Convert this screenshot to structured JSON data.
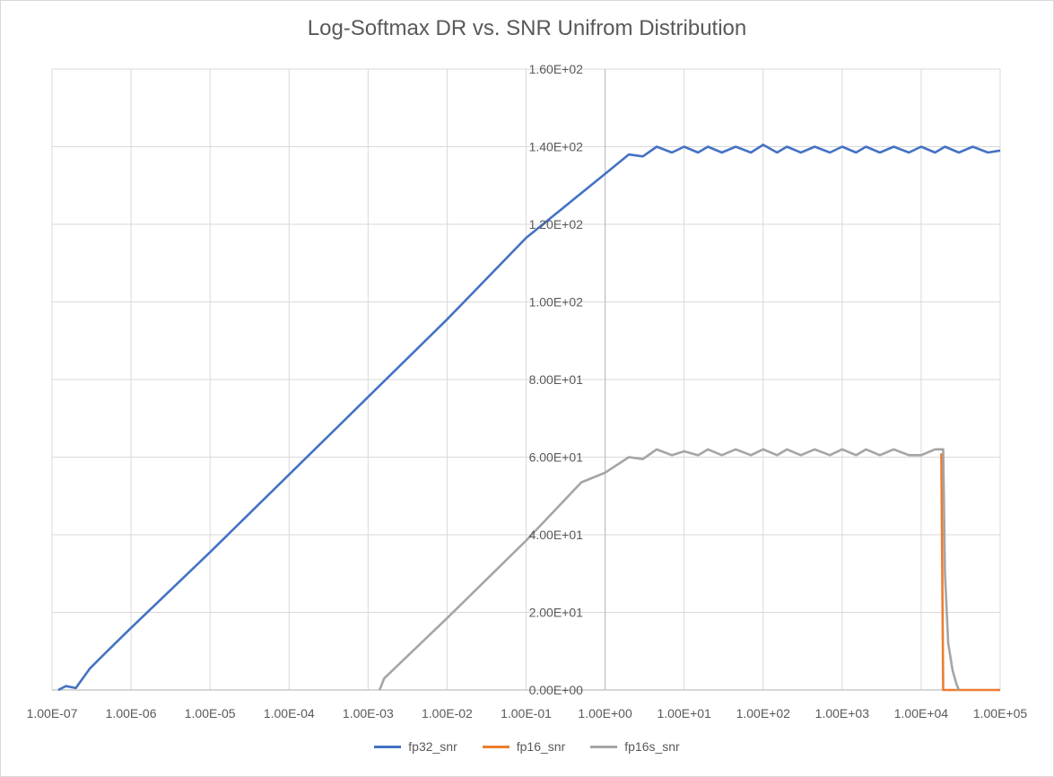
{
  "chart_data": {
    "type": "line",
    "title": "Log-Softmax DR vs. SNR Unifrom Distribution",
    "xlabel": "",
    "ylabel": "",
    "x_scale": "log",
    "xlim": [
      1e-07,
      100000.0
    ],
    "ylim": [
      0,
      160
    ],
    "grid": true,
    "legend_position": "bottom",
    "x_ticks": [
      {
        "value": 1e-07,
        "label": "1.00E-07"
      },
      {
        "value": 1e-06,
        "label": "1.00E-06"
      },
      {
        "value": 1e-05,
        "label": "1.00E-05"
      },
      {
        "value": 0.0001,
        "label": "1.00E-04"
      },
      {
        "value": 0.001,
        "label": "1.00E-03"
      },
      {
        "value": 0.01,
        "label": "1.00E-02"
      },
      {
        "value": 0.1,
        "label": "1.00E-01"
      },
      {
        "value": 1.0,
        "label": "1.00E+00"
      },
      {
        "value": 10.0,
        "label": "1.00E+01"
      },
      {
        "value": 100.0,
        "label": "1.00E+02"
      },
      {
        "value": 1000.0,
        "label": "1.00E+03"
      },
      {
        "value": 10000.0,
        "label": "1.00E+04"
      },
      {
        "value": 100000.0,
        "label": "1.00E+05"
      }
    ],
    "y_ticks": [
      {
        "value": 0,
        "label": "0.00E+00"
      },
      {
        "value": 20,
        "label": "2.00E+01"
      },
      {
        "value": 40,
        "label": "4.00E+01"
      },
      {
        "value": 60,
        "label": "6.00E+01"
      },
      {
        "value": 80,
        "label": "8.00E+01"
      },
      {
        "value": 100,
        "label": "1.00E+02"
      },
      {
        "value": 120,
        "label": "1.20E+02"
      },
      {
        "value": 140,
        "label": "1.40E+02"
      },
      {
        "value": 160,
        "label": "1.60E+02"
      }
    ],
    "series": [
      {
        "name": "fp32_snr",
        "color": "#4472c4",
        "x": [
          1.2e-07,
          1.5e-07,
          2e-07,
          3e-07,
          5e-07,
          1e-06,
          1e-05,
          0.0001,
          0.001,
          0.01,
          0.1,
          1.0,
          2.0,
          3.0,
          4.5,
          7.0,
          10.0,
          15.0,
          20.0,
          30.0,
          45.0,
          70.0,
          100.0,
          150.0,
          200.0,
          300.0,
          450.0,
          700.0,
          1000.0,
          1500.0,
          2000.0,
          3000.0,
          4500.0,
          7000.0,
          10000.0,
          15000.0,
          20000.0,
          30000.0,
          45000.0,
          70000.0,
          100000.0
        ],
        "y": [
          0.0,
          1.0,
          0.5,
          5.5,
          10.0,
          16.0,
          35.5,
          55.5,
          75.5,
          95.5,
          116.5,
          133.0,
          138.0,
          137.5,
          140.0,
          138.5,
          140.0,
          138.5,
          140.0,
          138.5,
          140.0,
          138.5,
          140.5,
          138.5,
          140.0,
          138.5,
          140.0,
          138.5,
          140.0,
          138.5,
          140.0,
          138.5,
          140.0,
          138.5,
          140.0,
          138.5,
          140.0,
          138.5,
          140.0,
          138.5,
          139.0
        ]
      },
      {
        "name": "fp16_snr",
        "color": "#ed7d31",
        "x": [
          18000.0,
          19000.0,
          100000.0
        ],
        "y": [
          61.0,
          0.0,
          0.0
        ]
      },
      {
        "name": "fp16s_snr",
        "color": "#a5a5a5",
        "x": [
          0.0014,
          0.0016,
          0.01,
          0.1,
          0.5,
          1.0,
          2.0,
          3.0,
          4.5,
          7.0,
          10.0,
          15.0,
          20.0,
          30.0,
          45.0,
          70.0,
          100.0,
          150.0,
          200.0,
          300.0,
          450.0,
          700.0,
          1000.0,
          1500.0,
          2000.0,
          3000.0,
          4500.0,
          7000.0,
          10000.0,
          15000.0,
          19000.0,
          20000.0,
          22000.0,
          25000.0,
          28000.0,
          30000.0
        ],
        "y": [
          0.0,
          3.0,
          18.5,
          38.5,
          53.5,
          56.0,
          60.0,
          59.5,
          62.0,
          60.5,
          61.5,
          60.5,
          62.0,
          60.5,
          62.0,
          60.5,
          62.0,
          60.5,
          62.0,
          60.5,
          62.0,
          60.5,
          62.0,
          60.5,
          62.0,
          60.5,
          62.0,
          60.5,
          60.5,
          62.0,
          62.0,
          30.0,
          12.0,
          5.0,
          1.5,
          0.0
        ]
      }
    ]
  }
}
